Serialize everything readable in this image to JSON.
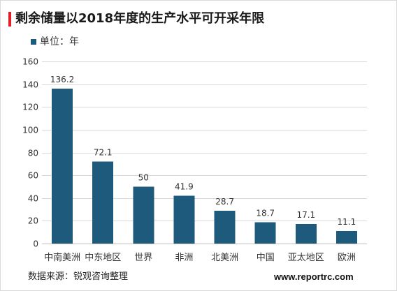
{
  "colors": {
    "title_accent": "#e31e24",
    "label_text": "#333333",
    "gridline": "#d9d9d9",
    "axis_line": "#bfbfbf"
  },
  "chart_data": {
    "type": "bar",
    "title": "剩余储量以2018年度的生产水平可开采年限",
    "categories": [
      "中南美洲",
      "中东地区",
      "世界",
      "非洲",
      "北美洲",
      "中国",
      "亚太地区",
      "欧洲"
    ],
    "series": [
      {
        "name": "单位：年",
        "values": [
          136.2,
          72.1,
          50,
          41.9,
          28.7,
          18.7,
          17.1,
          11.1
        ],
        "color": "#1e5a7b"
      }
    ],
    "ylim": [
      0,
      160
    ],
    "yticks": [
      0,
      20,
      40,
      60,
      80,
      100,
      120,
      140,
      160
    ],
    "grid": true,
    "legend": "top-left"
  },
  "footer": {
    "source": "数据来源：锐观咨询整理",
    "website": "www.reportrc.com"
  }
}
